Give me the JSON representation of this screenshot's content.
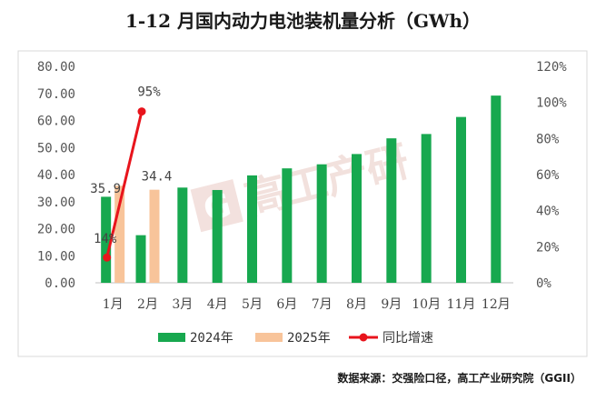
{
  "chart_data": {
    "type": "bar",
    "title": "1-12 月国内动力电池装机量分析（GWh）",
    "categories": [
      "1月",
      "2月",
      "3月",
      "4月",
      "5月",
      "6月",
      "7月",
      "8月",
      "9月",
      "10月",
      "11月",
      "12月"
    ],
    "series": [
      {
        "name": "2024年",
        "type": "bar",
        "axis": "left",
        "color": "#17a84f",
        "values": [
          31.8,
          17.6,
          35.2,
          34.3,
          39.7,
          42.3,
          43.8,
          47.6,
          53.4,
          55.0,
          61.3,
          69.2
        ]
      },
      {
        "name": "2025年",
        "type": "bar",
        "axis": "left",
        "color": "#f8c49a",
        "values": [
          35.9,
          34.4,
          null,
          null,
          null,
          null,
          null,
          null,
          null,
          null,
          null,
          null
        ]
      },
      {
        "name": "同比增速",
        "type": "line",
        "axis": "right",
        "color": "#e8141c",
        "values": [
          14,
          95,
          null,
          null,
          null,
          null,
          null,
          null,
          null,
          null,
          null,
          null
        ]
      }
    ],
    "data_labels": [
      {
        "series": 1,
        "index": 0,
        "text": "35.9"
      },
      {
        "series": 1,
        "index": 1,
        "text": "34.4"
      },
      {
        "series": 2,
        "index": 0,
        "text": "14%"
      },
      {
        "series": 2,
        "index": 1,
        "text": "95%"
      }
    ],
    "y_left": {
      "min": 0,
      "max": 80,
      "step": 10,
      "ticks": [
        "0.00",
        "10.00",
        "20.00",
        "30.00",
        "40.00",
        "50.00",
        "60.00",
        "70.00",
        "80.00"
      ]
    },
    "y_right": {
      "min": 0,
      "max": 120,
      "step": 20,
      "ticks": [
        "0%",
        "20%",
        "40%",
        "60%",
        "80%",
        "100%",
        "120%"
      ]
    },
    "legend_position": "bottom",
    "grid": false
  },
  "source_note": "数据来源：交强险口径，高工产业研究院（GGII）",
  "watermark": "高工产研",
  "watermark_logo": "G",
  "colors": {
    "frame": "#d9d9d9",
    "axis": "#bfbfbf",
    "bar2024": "#17a84f",
    "bar2025": "#f8c49a",
    "line": "#e8141c"
  }
}
